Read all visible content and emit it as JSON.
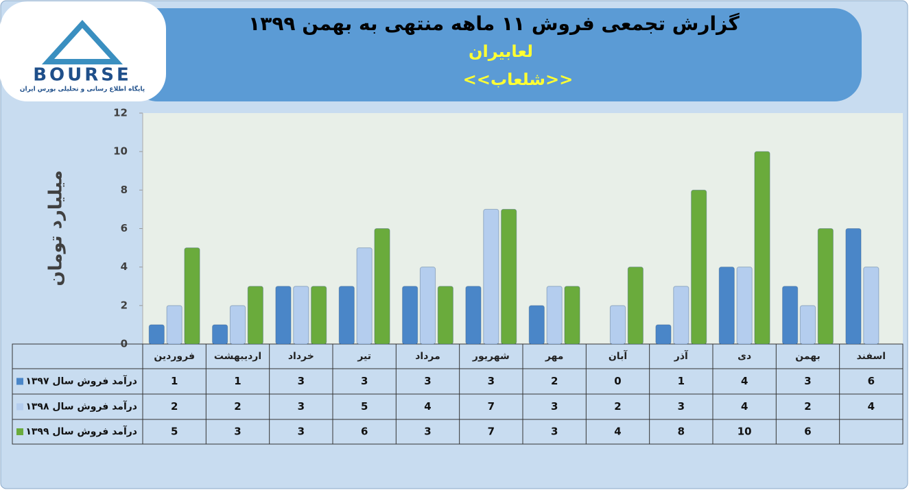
{
  "logo": {
    "name": "BOURSE",
    "tagline": "پایگاه اطلاع رسانی و تحلیلی بورس ایران"
  },
  "chart_data": {
    "type": "bar",
    "title": "گزارش تجمعی فروش ۱۱ ماهه منتهی به بهمن ۱۳۹۹",
    "subtitle": "لعابیران",
    "symbol": "<<شلعاب>>",
    "ylabel": "میلیارد تومان",
    "categories": [
      "فروردین",
      "اردیبهشت",
      "خرداد",
      "تیر",
      "مرداد",
      "شهریور",
      "مهر",
      "آبان",
      "آذر",
      "دی",
      "بهمن",
      "اسفند"
    ],
    "series": [
      {
        "name": "درآمد فروش سال ۱۳۹۷",
        "color": "#4a86c8",
        "values": [
          1,
          1,
          3,
          3,
          3,
          3,
          2,
          0,
          1,
          4,
          3,
          6
        ]
      },
      {
        "name": "درآمد فروش سال ۱۳۹۸",
        "color": "#b4cdee",
        "values": [
          2,
          2,
          3,
          5,
          4,
          7,
          3,
          2,
          3,
          4,
          2,
          4
        ]
      },
      {
        "name": "درآمد فروش سال ۱۳۹۹",
        "color": "#6aab3c",
        "values": [
          5,
          3,
          3,
          6,
          3,
          7,
          3,
          4,
          8,
          10,
          6,
          null
        ]
      }
    ],
    "ylim": [
      0,
      12
    ],
    "yticks": [
      0,
      2,
      4,
      6,
      8,
      10,
      12
    ],
    "grid": false
  }
}
